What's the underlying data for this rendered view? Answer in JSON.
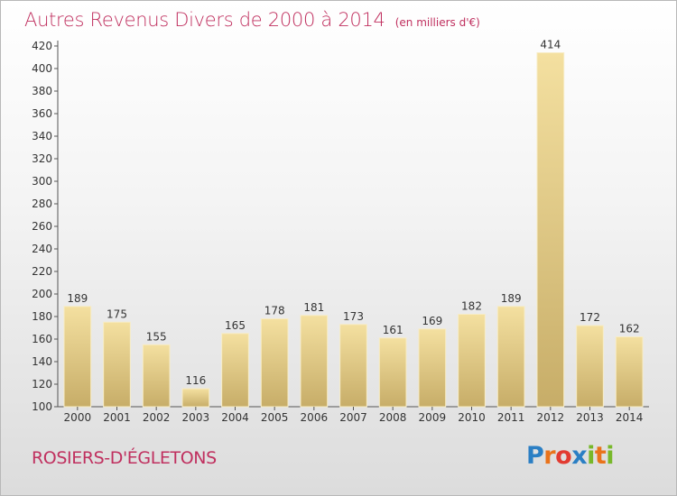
{
  "title": "Autres Revenus Divers de 2000 à 2014",
  "subtitle": "(en milliers d'€)",
  "place": "ROSIERS-D'ÉGLETONS",
  "logo": {
    "letters": [
      "P",
      "r",
      "o",
      "x",
      "i",
      "t",
      "i"
    ],
    "colors": [
      "#2b7fc4",
      "#e9731b",
      "#e23b31",
      "#2b7fc4",
      "#78b82a",
      "#e9731b",
      "#78b82a"
    ]
  },
  "colors": {
    "bar_light": "#f4e0a0",
    "bar_dark": "#c7ad68",
    "title": "#c0305f"
  },
  "chart_data": {
    "type": "bar",
    "title": "Autres Revenus Divers de 2000 à 2014",
    "subtitle": "(en milliers d'€)",
    "categories": [
      "2000",
      "2001",
      "2002",
      "2003",
      "2004",
      "2005",
      "2006",
      "2007",
      "2008",
      "2009",
      "2010",
      "2011",
      "2012",
      "2013",
      "2014"
    ],
    "values": [
      189,
      175,
      155,
      116,
      165,
      178,
      181,
      173,
      161,
      169,
      182,
      189,
      414,
      172,
      162
    ],
    "ylim": [
      100,
      420
    ],
    "yticks": [
      100,
      120,
      140,
      160,
      180,
      200,
      220,
      240,
      260,
      280,
      300,
      320,
      340,
      360,
      380,
      400,
      420
    ],
    "grid": false,
    "data_labels": true
  }
}
